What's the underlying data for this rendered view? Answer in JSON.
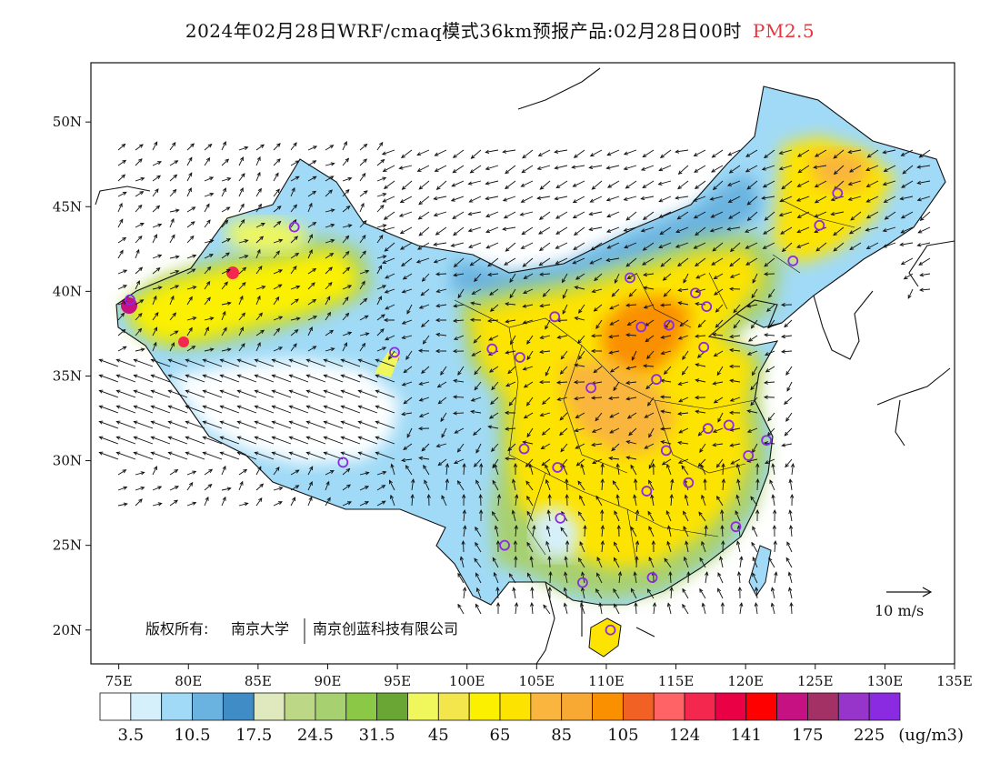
{
  "header": {
    "title": "2024年02月28日WRF/cmaq模式36km预报产品:02月28日00时",
    "pollutant": "PM2.5"
  },
  "map": {
    "lon_ticks": [
      "75E",
      "80E",
      "85E",
      "90E",
      "95E",
      "100E",
      "105E",
      "110E",
      "115E",
      "120E",
      "125E",
      "130E",
      "135E"
    ],
    "lat_ticks": [
      "20N",
      "25N",
      "30N",
      "35N",
      "40N",
      "45N",
      "50N"
    ],
    "lon_range": [
      73,
      135
    ],
    "lat_range": [
      18,
      53.5
    ],
    "copyright_label": "版权所有:",
    "copyright_org1": "南京大学",
    "copyright_org2": "南京创蓝科技有限公司",
    "wind_scale_label": "10 m/s"
  },
  "colorbar": {
    "colors": [
      "#ffffff",
      "#d6f0fb",
      "#a0daf6",
      "#6ab3e0",
      "#3f8cc7",
      "#dfe9bd",
      "#bcd886",
      "#a7d071",
      "#8bc845",
      "#6aa634",
      "#f0f75c",
      "#f3e54c",
      "#fbf000",
      "#fde300",
      "#f9b53e",
      "#f8a933",
      "#fa8f00",
      "#f26124",
      "#ff6366",
      "#f4284e",
      "#ea0044",
      "#fe0000",
      "#c51182",
      "#a43166",
      "#9734c9",
      "#8a2be2"
    ],
    "labels": [
      "3.5",
      "10.5",
      "17.5",
      "24.5",
      "31.5",
      "45",
      "65",
      "85",
      "105",
      "124",
      "141",
      "175",
      "225"
    ],
    "unit": "(ug/m3)"
  },
  "sites": [
    {
      "lon": 75.8,
      "lat": 39.5
    },
    {
      "lon": 87.6,
      "lat": 43.8
    },
    {
      "lon": 94.8,
      "lat": 36.4
    },
    {
      "lon": 91.1,
      "lat": 29.9
    },
    {
      "lon": 101.8,
      "lat": 36.6
    },
    {
      "lon": 103.8,
      "lat": 36.1
    },
    {
      "lon": 106.3,
      "lat": 38.5
    },
    {
      "lon": 111.7,
      "lat": 40.8
    },
    {
      "lon": 112.5,
      "lat": 37.9
    },
    {
      "lon": 114.5,
      "lat": 38.0
    },
    {
      "lon": 116.4,
      "lat": 39.9
    },
    {
      "lon": 117.2,
      "lat": 39.1
    },
    {
      "lon": 117.0,
      "lat": 36.7
    },
    {
      "lon": 113.6,
      "lat": 34.8
    },
    {
      "lon": 108.9,
      "lat": 34.3
    },
    {
      "lon": 104.1,
      "lat": 30.7
    },
    {
      "lon": 106.5,
      "lat": 29.6
    },
    {
      "lon": 106.7,
      "lat": 26.6
    },
    {
      "lon": 102.7,
      "lat": 25.0
    },
    {
      "lon": 108.3,
      "lat": 22.8
    },
    {
      "lon": 110.3,
      "lat": 20.0
    },
    {
      "lon": 113.3,
      "lat": 23.1
    },
    {
      "lon": 112.9,
      "lat": 28.2
    },
    {
      "lon": 114.3,
      "lat": 30.6
    },
    {
      "lon": 115.9,
      "lat": 28.7
    },
    {
      "lon": 117.3,
      "lat": 31.9
    },
    {
      "lon": 118.8,
      "lat": 32.1
    },
    {
      "lon": 120.2,
      "lat": 30.3
    },
    {
      "lon": 121.5,
      "lat": 31.2
    },
    {
      "lon": 119.3,
      "lat": 26.1
    },
    {
      "lon": 123.4,
      "lat": 41.8
    },
    {
      "lon": 125.3,
      "lat": 43.9
    },
    {
      "lon": 126.6,
      "lat": 45.8
    }
  ]
}
